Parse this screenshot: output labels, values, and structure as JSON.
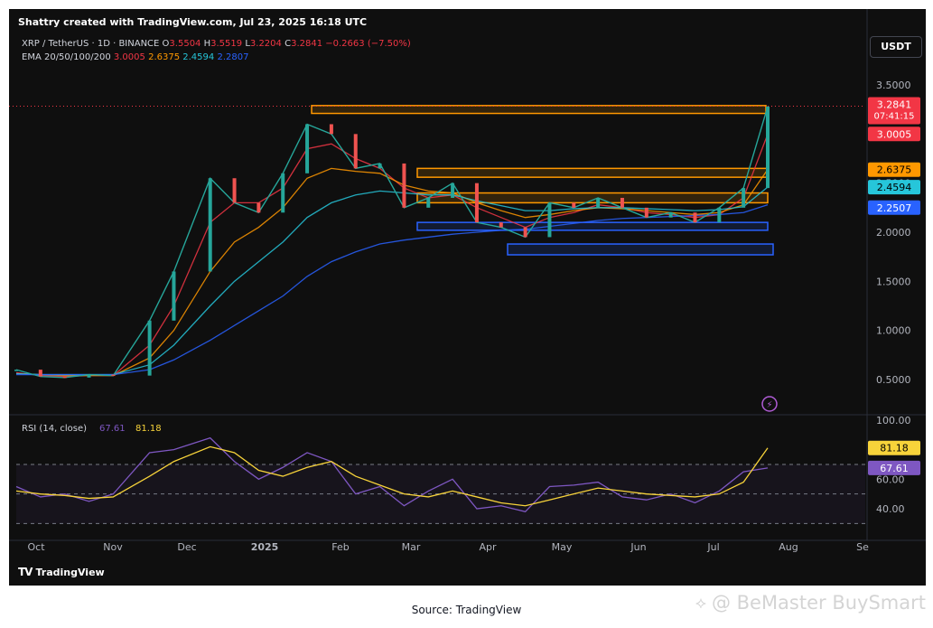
{
  "header": {
    "created_by": "Shattry created with TradingView.com, Jul 23, 2025 16:18 UTC"
  },
  "symbol": {
    "pair": "XRP / TetherUS · 1D · BINANCE",
    "open_label": "O",
    "open": "3.5504",
    "high_label": "H",
    "high": "3.5519",
    "low_label": "L",
    "low": "3.2204",
    "close_label": "C",
    "close": "3.2841",
    "change": "−0.2663 (−7.50%)"
  },
  "ema": {
    "label": "EMA 20/50/100/200",
    "values": [
      "3.0005",
      "2.6375",
      "2.4594",
      "2.2807"
    ],
    "colors": [
      "#f23645",
      "#ff9800",
      "#26c6da",
      "#2962ff"
    ]
  },
  "quote_currency": "USDT",
  "rsi": {
    "label": "RSI (14, close)",
    "value": "67.61",
    "ma_value": "81.18"
  },
  "branding": {
    "logo_text": "TradingView",
    "source": "Source: TradingView",
    "watermark": "@ BeMaster BuySmart"
  },
  "chart_data": {
    "type": "line",
    "title": "XRP / TetherUS · 1D · BINANCE",
    "price_axis": {
      "ticks": [
        "3.5000",
        "3.0000",
        "2.5000",
        "2.0000",
        "1.5000",
        "1.0000",
        "0.5000"
      ],
      "tick_values": [
        3.5,
        3.0,
        2.5,
        2.0,
        1.5,
        1.0,
        0.5
      ]
    },
    "rsi_axis": {
      "ticks": [
        "100.00",
        "60.00",
        "40.00"
      ],
      "tick_values": [
        100,
        60,
        40
      ]
    },
    "x_ticks": [
      "Oct",
      "Nov",
      "Dec",
      "2025",
      "Feb",
      "Mar",
      "Apr",
      "May",
      "Jun",
      "Jul",
      "Aug",
      "Se"
    ],
    "x": [
      0,
      10,
      20,
      30,
      40,
      55,
      65,
      80,
      90,
      100,
      110,
      120,
      130,
      140,
      150,
      160,
      170,
      180,
      190,
      200,
      210,
      220,
      230,
      240,
      250,
      260,
      270,
      280,
      290,
      300,
      310
    ],
    "close": [
      0.6,
      0.53,
      0.52,
      0.55,
      0.54,
      1.1,
      1.6,
      2.55,
      2.3,
      2.2,
      2.6,
      3.1,
      3.0,
      2.65,
      2.7,
      2.25,
      2.35,
      2.5,
      2.1,
      2.05,
      1.95,
      2.3,
      2.25,
      2.35,
      2.25,
      2.15,
      2.2,
      2.1,
      2.25,
      2.45,
      3.28
    ],
    "ema": [
      {
        "name": "EMA 20",
        "values": [
          0.57,
          0.54,
          0.53,
          0.54,
          0.54,
          0.85,
          1.25,
          2.1,
          2.3,
          2.3,
          2.45,
          2.85,
          2.9,
          2.75,
          2.65,
          2.45,
          2.35,
          2.38,
          2.25,
          2.15,
          2.05,
          2.15,
          2.2,
          2.28,
          2.25,
          2.2,
          2.18,
          2.15,
          2.18,
          2.35,
          3.0
        ]
      },
      {
        "name": "EMA 50",
        "values": [
          0.56,
          0.55,
          0.54,
          0.54,
          0.54,
          0.72,
          1.0,
          1.6,
          1.9,
          2.05,
          2.25,
          2.55,
          2.65,
          2.62,
          2.6,
          2.48,
          2.42,
          2.4,
          2.3,
          2.22,
          2.15,
          2.18,
          2.22,
          2.25,
          2.24,
          2.22,
          2.2,
          2.18,
          2.2,
          2.28,
          2.64
        ]
      },
      {
        "name": "EMA 100",
        "values": [
          0.56,
          0.55,
          0.55,
          0.55,
          0.55,
          0.65,
          0.85,
          1.25,
          1.5,
          1.7,
          1.9,
          2.15,
          2.3,
          2.38,
          2.42,
          2.4,
          2.38,
          2.38,
          2.32,
          2.27,
          2.22,
          2.22,
          2.24,
          2.25,
          2.25,
          2.24,
          2.23,
          2.22,
          2.23,
          2.26,
          2.46
        ]
      },
      {
        "name": "EMA 200",
        "values": [
          0.55,
          0.55,
          0.55,
          0.55,
          0.55,
          0.6,
          0.7,
          0.9,
          1.05,
          1.2,
          1.35,
          1.55,
          1.7,
          1.8,
          1.88,
          1.92,
          1.95,
          1.98,
          2.0,
          2.02,
          2.03,
          2.06,
          2.09,
          2.12,
          2.14,
          2.15,
          2.16,
          2.17,
          2.18,
          2.2,
          2.28
        ]
      }
    ],
    "rsi": [
      55,
      48,
      50,
      45,
      50,
      78,
      80,
      88,
      72,
      60,
      68,
      78,
      72,
      50,
      55,
      42,
      52,
      60,
      40,
      42,
      38,
      55,
      56,
      58,
      48,
      46,
      50,
      44,
      52,
      65,
      67.61
    ],
    "rsi_ma": [
      52,
      50,
      49,
      47,
      48,
      62,
      72,
      82,
      78,
      66,
      62,
      68,
      72,
      62,
      56,
      50,
      48,
      52,
      48,
      44,
      42,
      46,
      50,
      54,
      52,
      50,
      49,
      48,
      50,
      58,
      81.18
    ],
    "zones": [
      {
        "color": "#ff9800",
        "y1": 3.21,
        "y2": 3.29
      },
      {
        "color": "#ff9800",
        "y1": 2.56,
        "y2": 2.65
      },
      {
        "color": "#ff9800",
        "y1": 2.3,
        "y2": 2.4
      },
      {
        "color": "#2962ff",
        "y1": 2.02,
        "y2": 2.1
      },
      {
        "color": "#2962ff",
        "y1": 1.77,
        "y2": 1.88
      }
    ],
    "last_price_label": "3.2841",
    "countdown": "07:41:15"
  }
}
